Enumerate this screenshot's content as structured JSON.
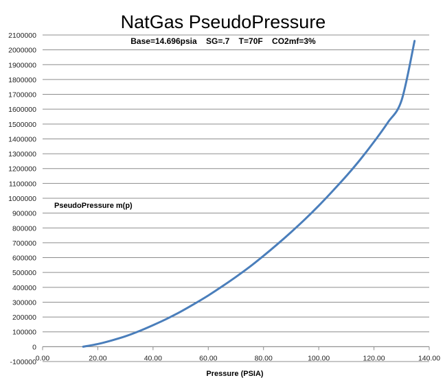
{
  "chart_data": {
    "type": "line",
    "title": "NatGas PseudoPressure",
    "subtitle": "Base=14.696psia    SG=.7    T=70F    CO2mf=3%",
    "xlabel": "Pressure (PSIA)",
    "ylabel": "",
    "xlim": [
      0,
      140
    ],
    "ylim": [
      -100000,
      2100000
    ],
    "x_ticks": [
      0,
      20,
      40,
      60,
      80,
      100,
      120,
      140
    ],
    "y_ticks": [
      -100000,
      0,
      100000,
      200000,
      300000,
      400000,
      500000,
      600000,
      700000,
      800000,
      900000,
      1000000,
      1100000,
      1200000,
      1300000,
      1400000,
      1500000,
      1600000,
      1700000,
      1800000,
      1900000,
      2000000,
      2100000
    ],
    "grid": "horizontal",
    "series": [
      {
        "name": "PseudoPressure m(p)",
        "color": "#4a7ebb",
        "x": [
          14.696,
          20,
          25,
          30,
          35,
          40,
          45,
          50,
          55,
          60,
          65,
          70,
          75,
          80,
          85,
          90,
          95,
          100,
          105,
          110,
          115,
          120,
          125,
          130,
          134.7
        ],
        "y": [
          0,
          18000,
          42000,
          70000,
          105000,
          145000,
          188000,
          236000,
          289000,
          345000,
          406000,
          470000,
          538000,
          612000,
          690000,
          772000,
          858000,
          950000,
          1048000,
          1150000,
          1260000,
          1380000,
          1510000,
          1660000,
          2060000
        ]
      }
    ]
  }
}
